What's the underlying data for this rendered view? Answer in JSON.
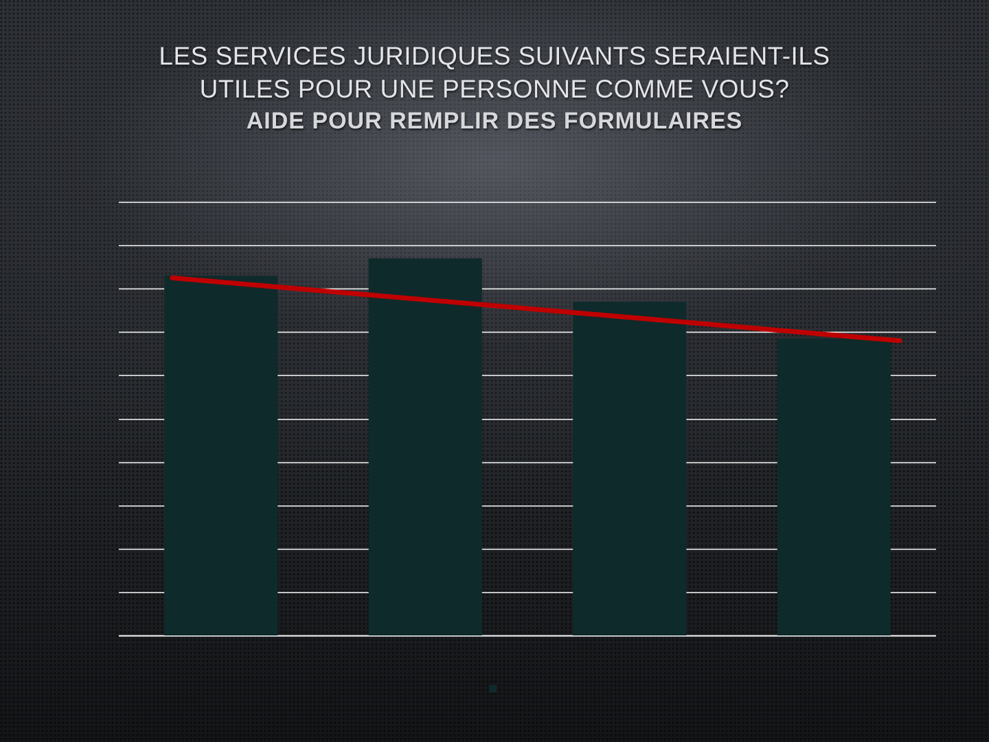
{
  "slide": {
    "title_line1": "LES SERVICES JURIDIQUES SUIVANTS SERAIENT-ILS",
    "title_line2": "UTILES POUR UNE PERSONNE COMME VOUS?",
    "subtitle": "AIDE POUR REMPLIR DES FORMULAIRES"
  },
  "chart_data": {
    "type": "bar",
    "categories": [
      "",
      "",
      "",
      ""
    ],
    "series": [
      {
        "values": [
          8.3,
          8.7,
          7.7,
          6.85
        ],
        "color": "#0f2a2b"
      }
    ],
    "trendline": {
      "type": "linear",
      "color": "#c00000",
      "start": 8.25,
      "end": 6.8
    },
    "ylim": [
      0,
      10
    ],
    "gridlines": 10,
    "grid": true,
    "grid_color": "#ffffff",
    "legend": {
      "placement": "bottom",
      "entries": [
        ""
      ]
    }
  }
}
